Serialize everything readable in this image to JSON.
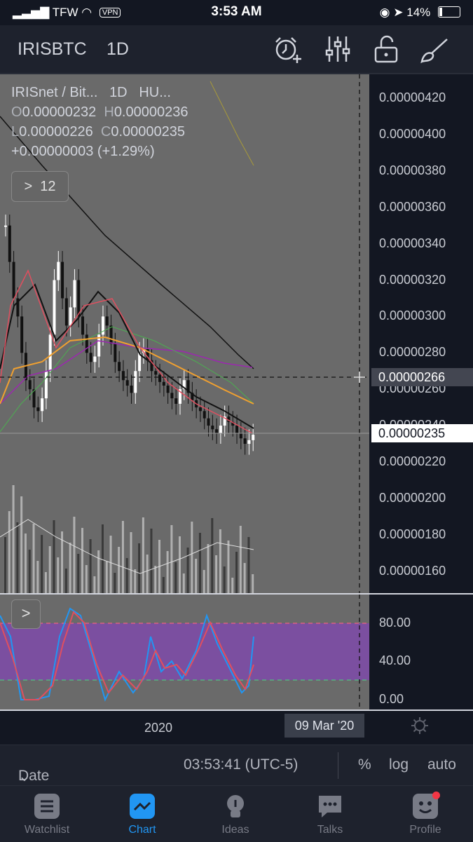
{
  "status": {
    "carrier": "TFW",
    "vpn": "VPN",
    "time": "3:53 AM",
    "battery": "14%"
  },
  "toolbar": {
    "symbol": "IRISBTC",
    "interval": "1D"
  },
  "legend": {
    "title": "IRISnet / Bit...",
    "interval": "1D",
    "exchange": "HU...",
    "open_key": "O",
    "open": "0.00000232",
    "high_key": "H",
    "high": "0.00000236",
    "low_key": "L",
    "low": "0.00000226",
    "close_key": "C",
    "close": "0.00000235",
    "change": "+0.00000003 (+1.29%)",
    "indicator_count": "12"
  },
  "price_axis": {
    "ticks": [
      "0.00000420",
      "0.00000400",
      "0.00000380",
      "0.00000360",
      "0.00000340",
      "0.00000320",
      "0.00000300",
      "0.00000280",
      "0.00000260",
      "0.00000240",
      "0.00000220",
      "0.00000200",
      "0.00000180",
      "0.00000160"
    ],
    "crosshair_price": "0.00000266",
    "last_price": "0.00000235"
  },
  "oscillator_axis": {
    "ticks": [
      "80.00",
      "40.00",
      "0.00"
    ]
  },
  "time_axis": {
    "year_label": "2020",
    "crosshair_date": "09 Mar '20"
  },
  "range_bar": {
    "date_range": "Date Range",
    "clock": "03:53:41 (UTC-5)",
    "percent": "%",
    "log": "log",
    "auto": "auto"
  },
  "tabs": [
    {
      "label": "Watchlist"
    },
    {
      "label": "Chart"
    },
    {
      "label": "Ideas"
    },
    {
      "label": "Talks"
    },
    {
      "label": "Profile"
    }
  ],
  "colors": {
    "accent": "#2196f3",
    "chart_bg": "#6a6a6a",
    "ui_bg": "#131722",
    "sma_red": "#e04f5f",
    "ema_orange": "#f0a030",
    "ma_green": "#4caf50",
    "ma_purple": "#9c27b0",
    "stoch_band": "#7b4fa0"
  }
}
